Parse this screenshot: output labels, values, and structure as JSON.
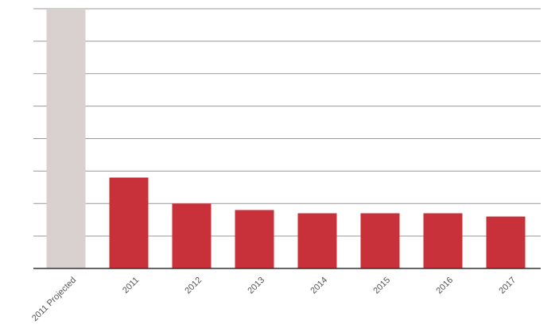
{
  "chart_data": {
    "type": "bar",
    "title": "",
    "xlabel": "",
    "ylabel": "",
    "categories": [
      "2011 Projected",
      "2011",
      "2012",
      "2013",
      "2014",
      "2015",
      "2016",
      "2017"
    ],
    "values": [
      8.0,
      2.8,
      2.0,
      1.8,
      1.7,
      1.7,
      1.7,
      1.6
    ],
    "ylim": [
      0,
      8
    ],
    "grid": true,
    "y_tick_labels_shown": false,
    "legend": "none",
    "colors": {
      "projected": "#d9d0d0",
      "actual": "#c8313a",
      "grid": "#999999",
      "axis": "#333333",
      "text": "#555555"
    }
  }
}
